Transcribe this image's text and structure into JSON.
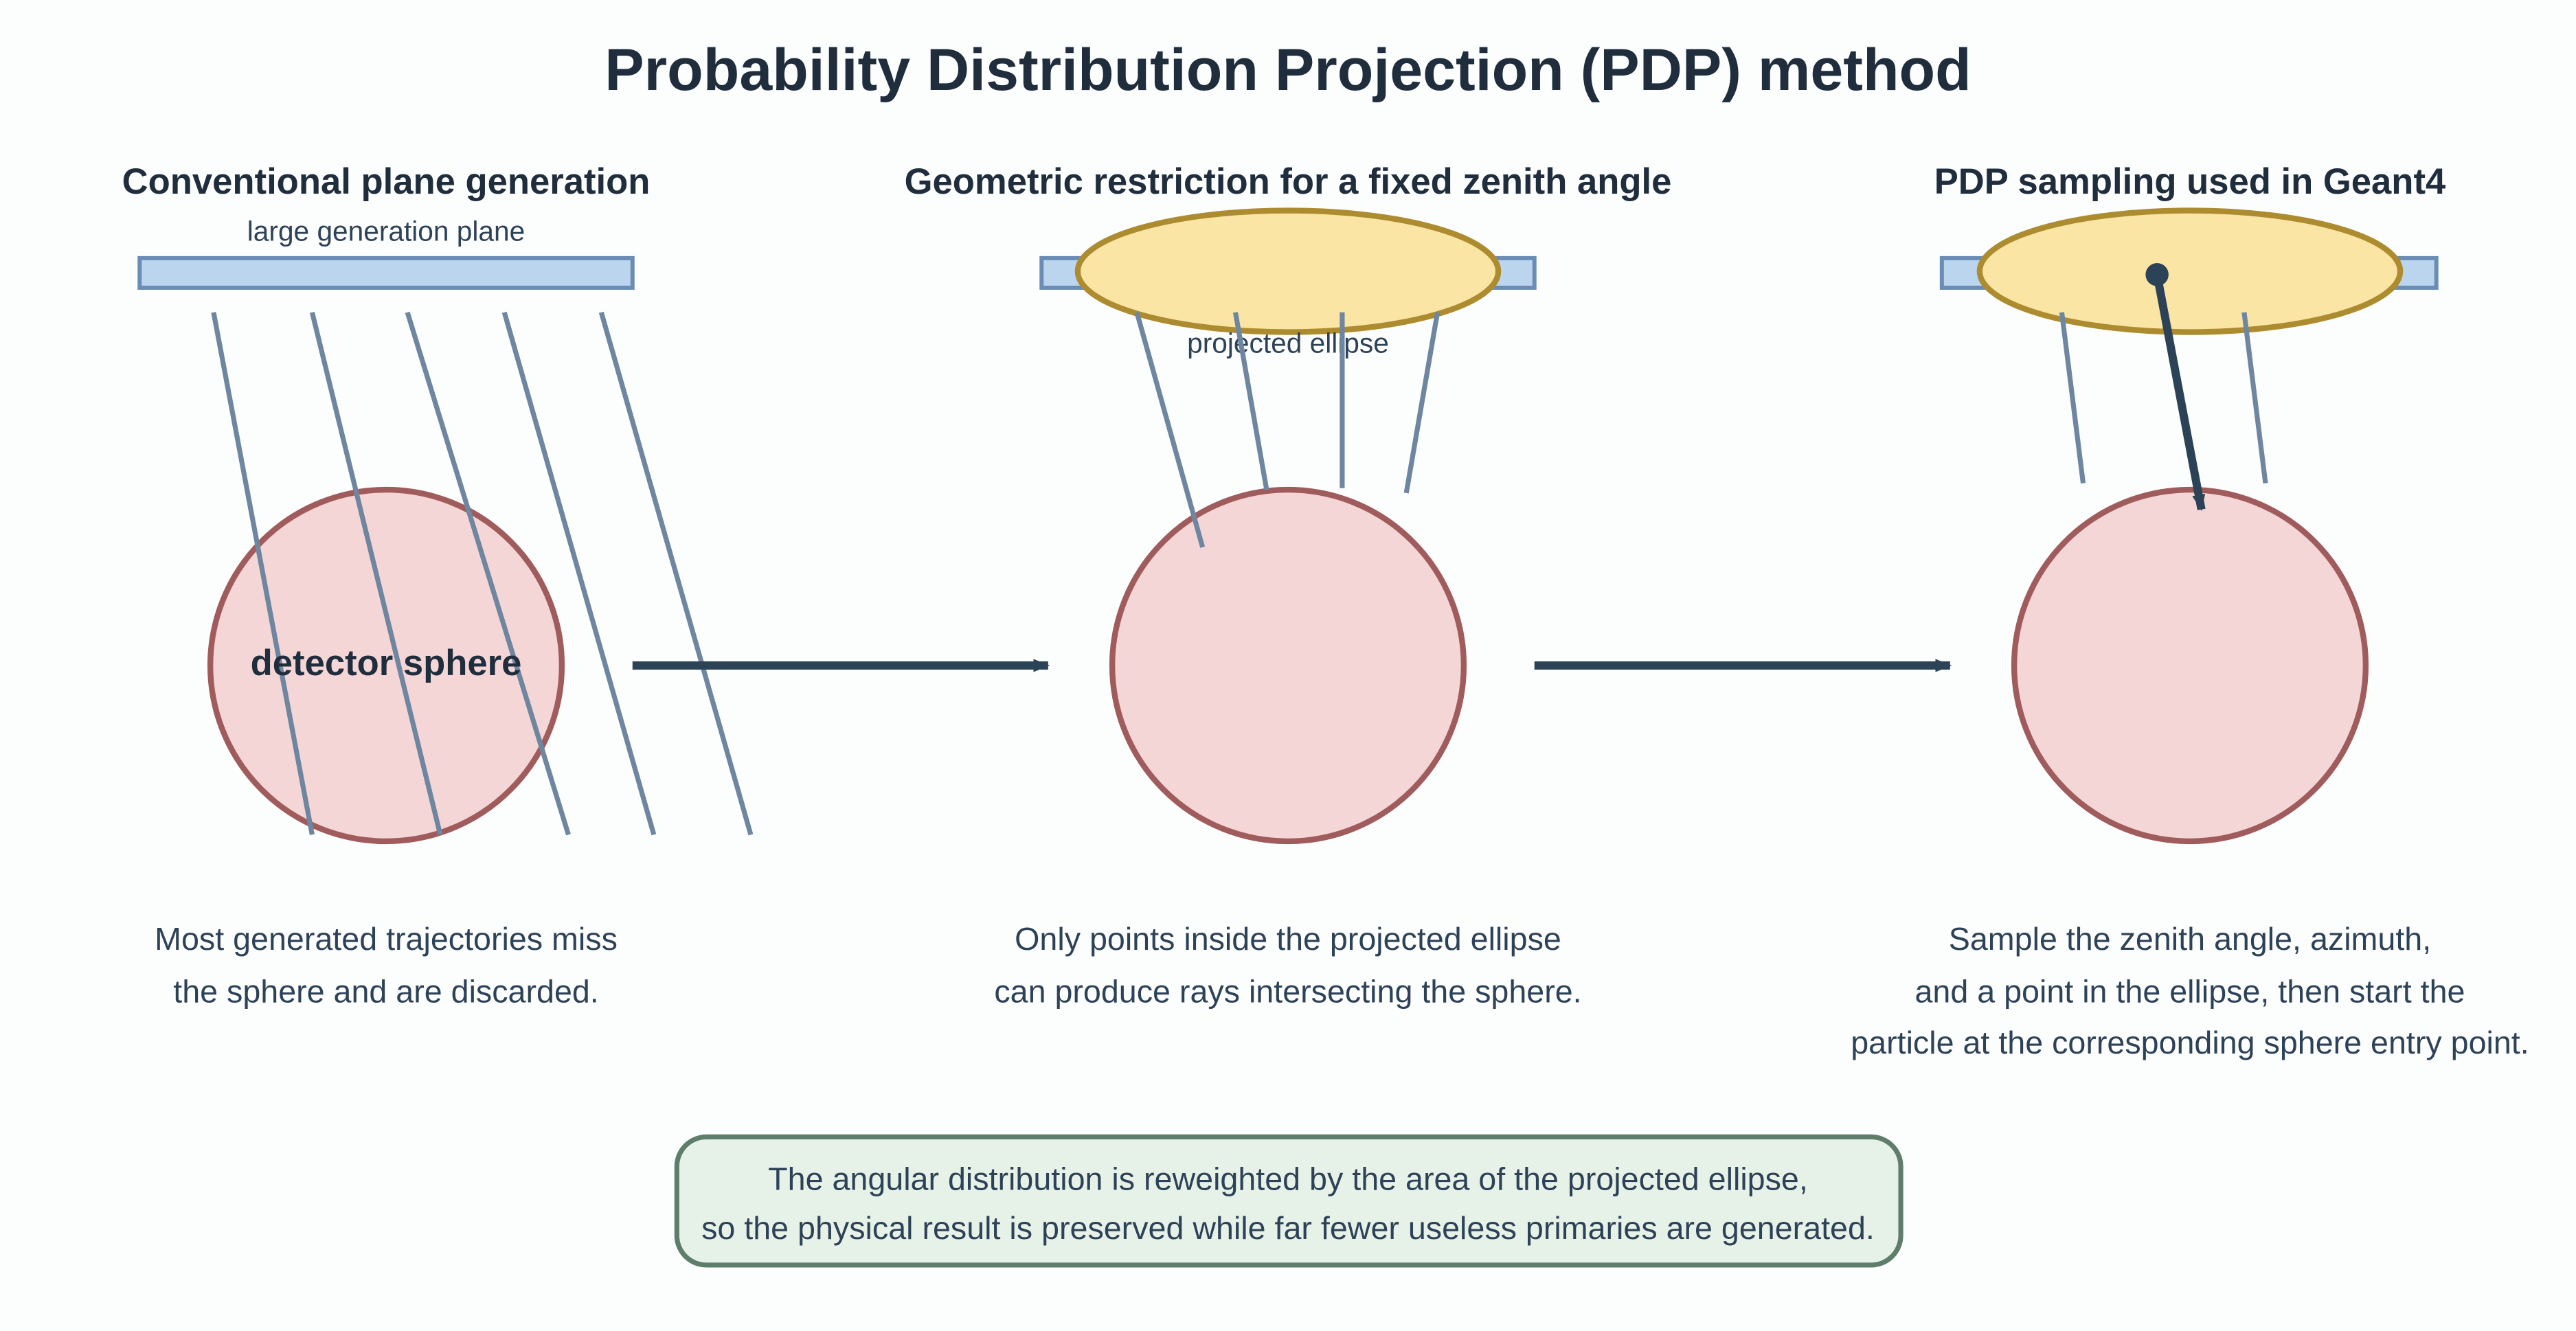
{
  "title": "Probability Distribution Projection (PDP) method",
  "panels": [
    {
      "heading": "Conventional plane generation",
      "plane_label": "large generation plane",
      "sphere_label": "detector sphere",
      "caption": [
        "Most generated trajectories miss",
        "the sphere and are discarded."
      ]
    },
    {
      "heading": "Geometric restriction for a fixed zenith angle",
      "ellipse_label": "projected ellipse",
      "caption": [
        "Only points inside the projected ellipse",
        "can produce rays intersecting the sphere."
      ]
    },
    {
      "heading": "PDP sampling used in Geant4",
      "caption": [
        "Sample the zenith angle, azimuth,",
        "and a point in the ellipse, then start the",
        "particle at the corresponding sphere entry point."
      ]
    }
  ],
  "note": [
    "The angular distribution is reweighted by the area of the projected ellipse,",
    "so the physical result is preserved while far fewer useless primaries are generated."
  ]
}
